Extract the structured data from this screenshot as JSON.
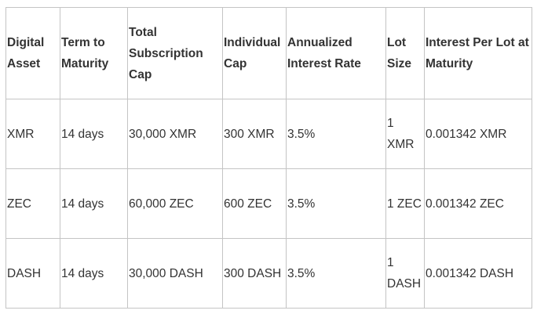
{
  "table": {
    "headers": [
      "Digital Asset",
      "Term to Maturity",
      "Total Subscription Cap",
      "Individual Cap",
      "Annualized Interest Rate",
      "Lot Size",
      "Interest Per Lot at Maturity"
    ],
    "rows": [
      [
        "XMR",
        "14 days",
        "30,000 XMR",
        "300 XMR",
        "3.5%",
        "1 XMR",
        "0.001342 XMR"
      ],
      [
        "ZEC",
        "14 days",
        "60,000 ZEC",
        "600 ZEC",
        "3.5%",
        "1 ZEC",
        "0.001342 ZEC"
      ],
      [
        "DASH",
        "14 days",
        "30,000 DASH",
        "300 DASH",
        "3.5%",
        "1 DASH",
        "0.001342 DASH"
      ]
    ]
  }
}
